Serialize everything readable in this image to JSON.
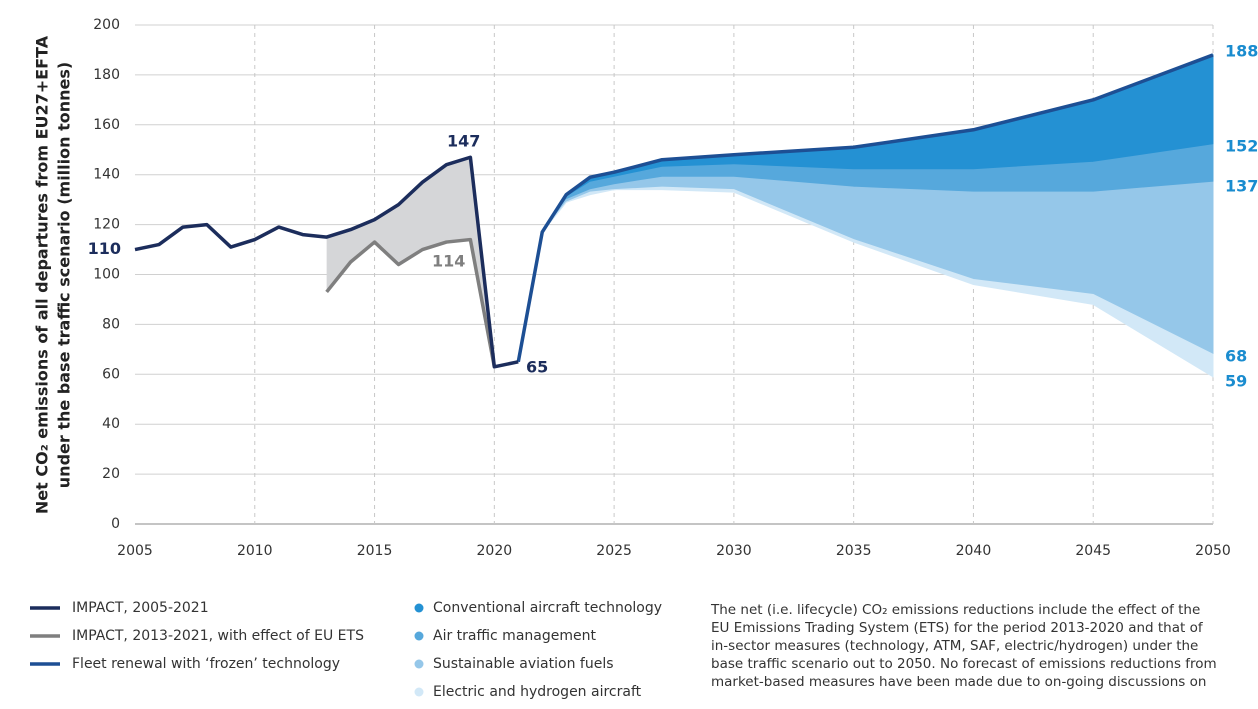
{
  "chart_data": {
    "type": "line",
    "ylabel": [
      "Net CO₂ emissions of all departures from EU27+EFTA",
      "under the base traffic scenario (million tonnes)"
    ],
    "xlim": [
      2005,
      2050
    ],
    "xticks": [
      2005,
      2010,
      2015,
      2020,
      2025,
      2030,
      2035,
      2040,
      2045,
      2050
    ],
    "ylim": [
      0,
      200
    ],
    "yticks": [
      0,
      20,
      40,
      60,
      80,
      100,
      120,
      140,
      160,
      180,
      200
    ],
    "grid": true,
    "series": [
      {
        "name": "IMPACT, 2005-2021",
        "color": "#1c2d5c",
        "x": [
          2005,
          2006,
          2007,
          2008,
          2009,
          2010,
          2011,
          2012,
          2013,
          2014,
          2015,
          2016,
          2017,
          2018,
          2019,
          2020,
          2021
        ],
        "values": [
          110,
          112,
          119,
          120,
          111,
          114,
          119,
          116,
          115,
          118,
          122,
          128,
          137,
          144,
          147,
          63,
          65
        ]
      },
      {
        "name": "IMPACT, 2013-2021, with effect of EU ETS",
        "color": "#7f7f7f",
        "x": [
          2013,
          2014,
          2015,
          2016,
          2017,
          2018,
          2019,
          2020
        ],
        "values": [
          93,
          105,
          113,
          104,
          110,
          113,
          114,
          63
        ]
      },
      {
        "name": "Fleet renewal with ‘frozen’ technology",
        "color": "#1d4f94",
        "x": [
          2021,
          2022,
          2023,
          2024,
          2025,
          2027,
          2030,
          2035,
          2040,
          2045,
          2050
        ],
        "values": [
          65,
          117,
          132,
          139,
          141,
          146,
          148,
          151,
          158,
          170,
          188
        ]
      }
    ],
    "bands": [
      {
        "name": "Conventional aircraft technology",
        "color": "#2491d3",
        "x": [
          2022,
          2023,
          2024,
          2025,
          2027,
          2030,
          2035,
          2040,
          2045,
          2050
        ],
        "values": [
          117,
          131,
          137,
          139,
          143,
          144,
          142,
          142,
          145,
          152
        ]
      },
      {
        "name": "Air traffic management",
        "color": "#56a8dc",
        "x": [
          2022,
          2023,
          2024,
          2025,
          2027,
          2030,
          2035,
          2040,
          2045,
          2050
        ],
        "values": [
          117,
          130,
          134,
          136,
          139,
          139,
          135,
          133,
          133,
          137
        ]
      },
      {
        "name": "Sustainable aviation fuels",
        "color": "#95c7e9",
        "x": [
          2022,
          2023,
          2024,
          2025,
          2027,
          2030,
          2035,
          2040,
          2045,
          2050
        ],
        "values": [
          117,
          129,
          133,
          134,
          135,
          134,
          114,
          98,
          92,
          68
        ]
      },
      {
        "name": "Electric and hydrogen aircraft",
        "color": "#d2e8f7",
        "x": [
          2022,
          2023,
          2024,
          2025,
          2027,
          2030,
          2035,
          2040,
          2045,
          2050
        ],
        "values": [
          117,
          129,
          132,
          134,
          134,
          133,
          113,
          96,
          88,
          59
        ]
      }
    ],
    "ets_fill": "#d5d6d8",
    "note": [
      "The net (i.e. lifecycle) CO₂ emissions reductions include the effect of the",
      "EU Emissions Trading System (ETS) for the period 2013-2020 and that of",
      "in-sector measures (technology, ATM, SAF, electric/hydrogen) under the",
      "base traffic scenario out to 2050. No forecast of emissions reductions from",
      "market-based measures have been made due to on-going discussions on"
    ]
  }
}
